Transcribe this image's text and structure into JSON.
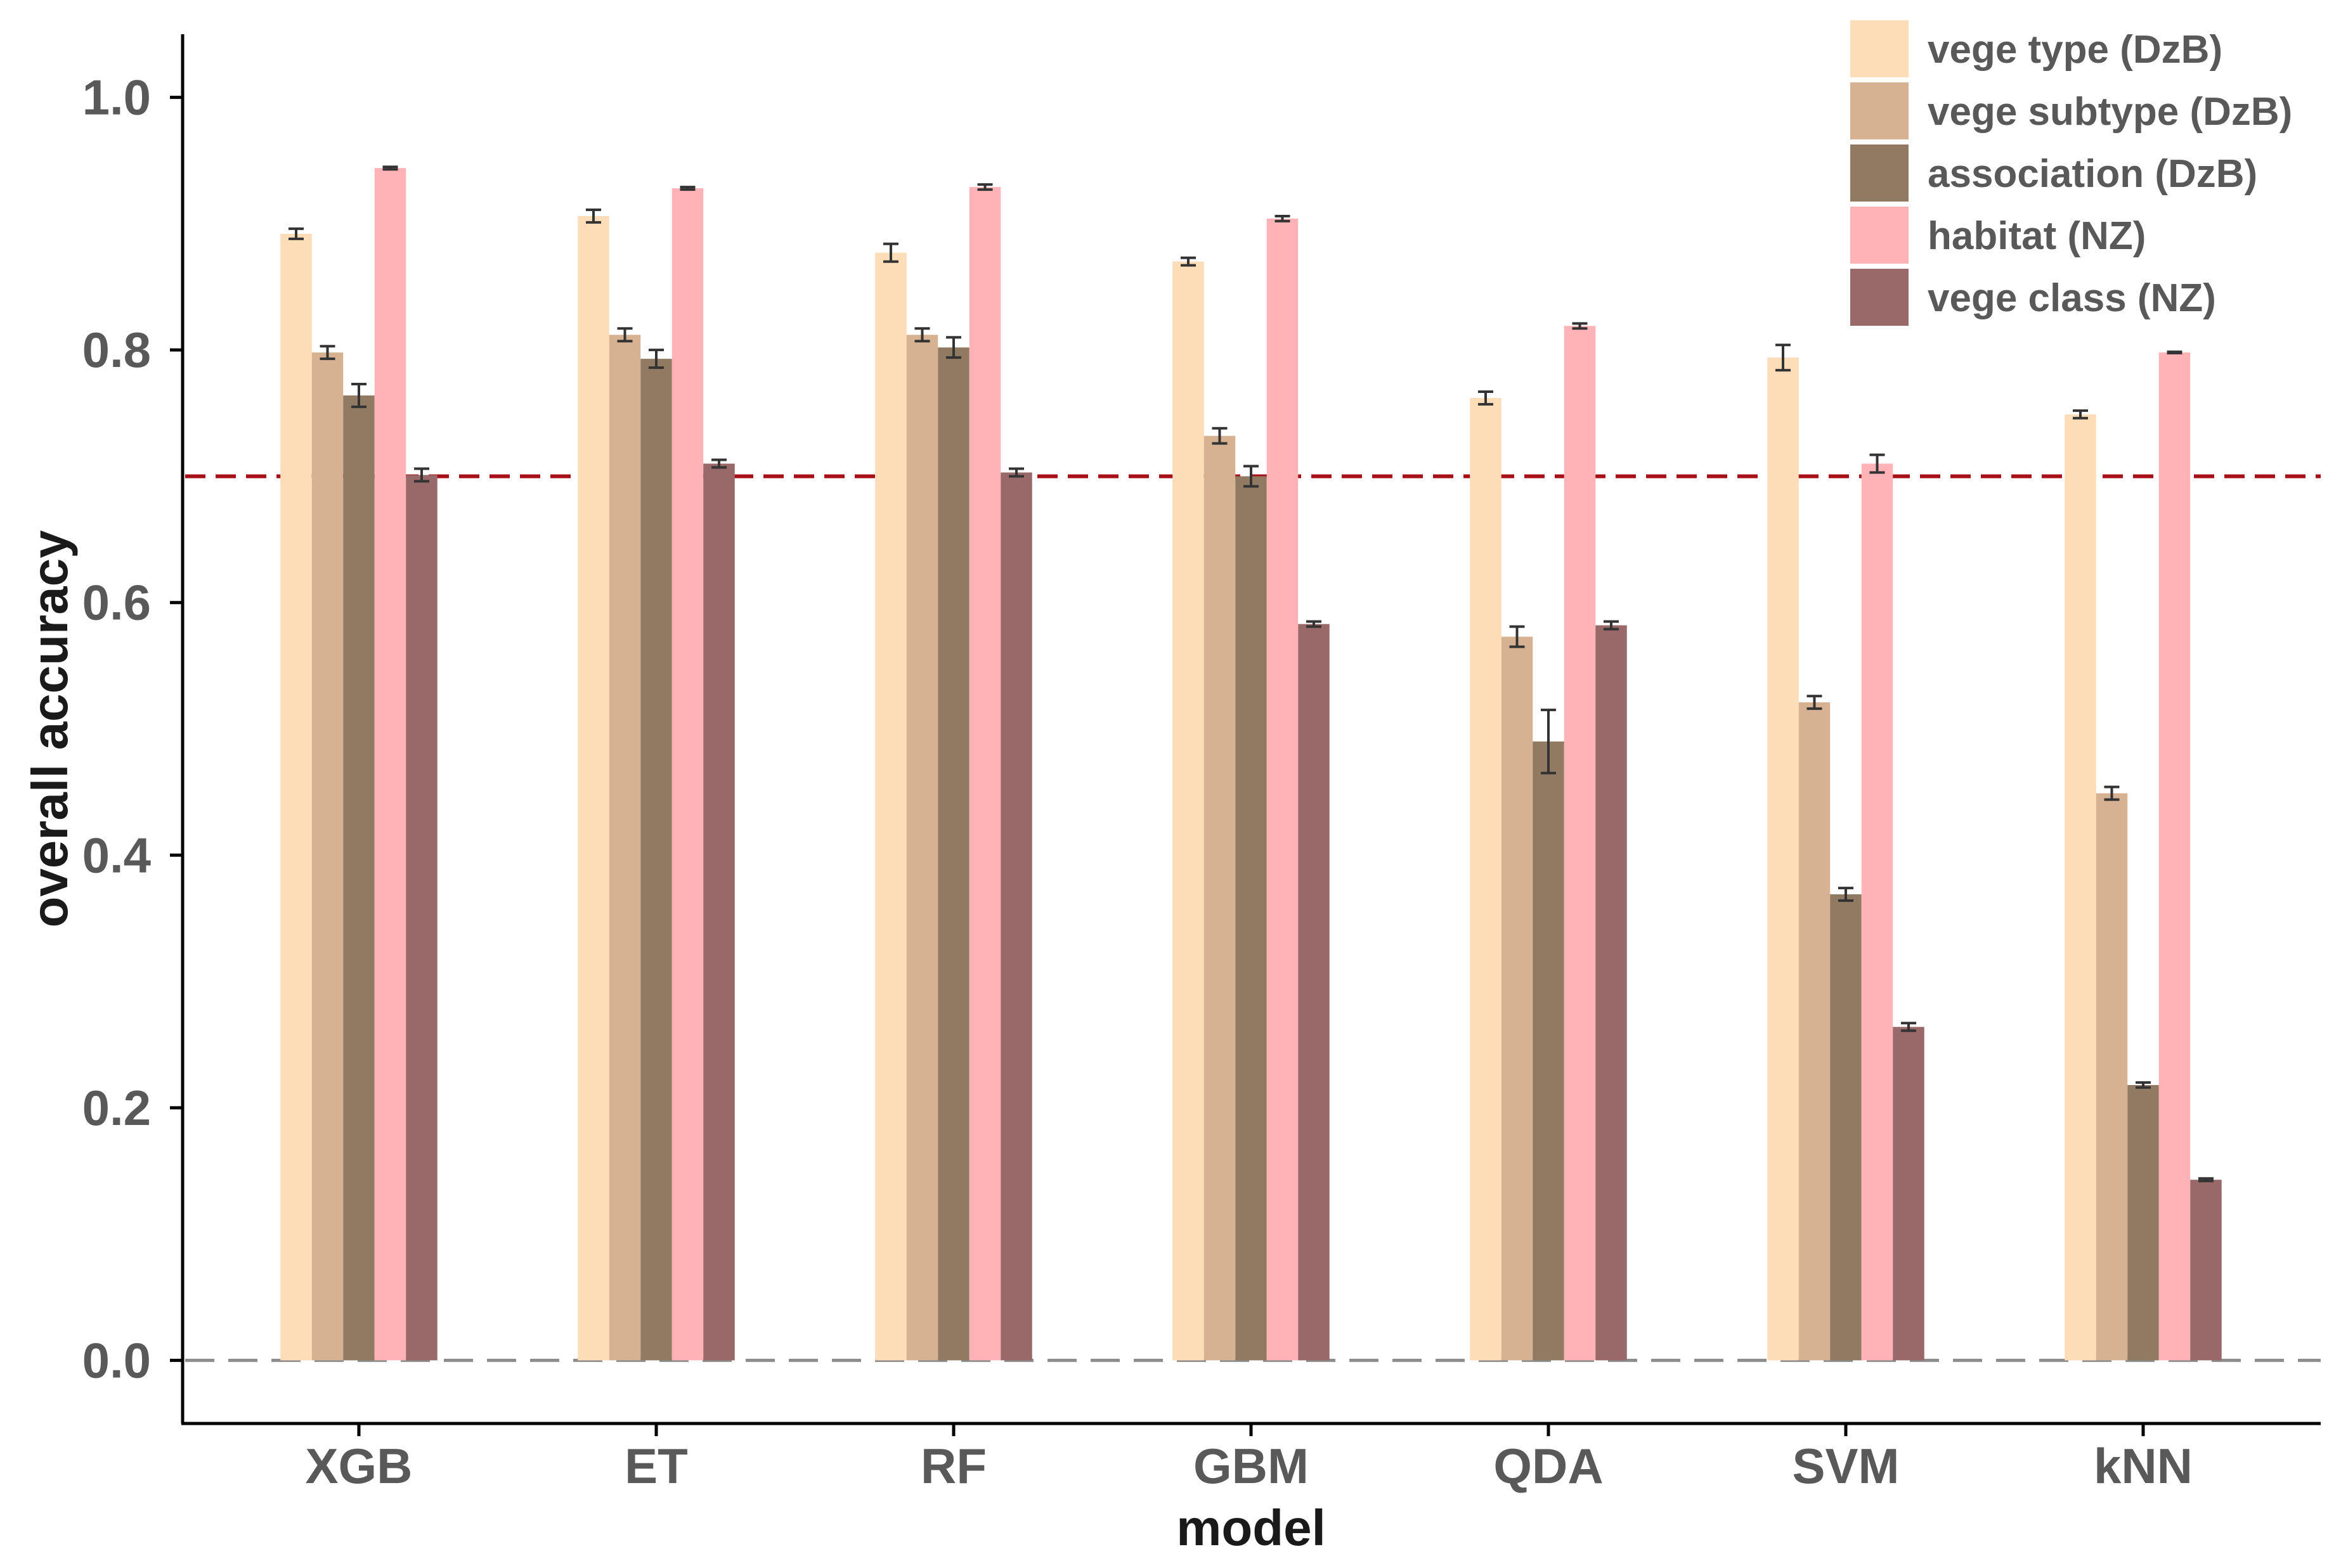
{
  "chart_data": {
    "type": "bar",
    "title": "",
    "xlabel": "model",
    "ylabel": "overall accuracy",
    "ylim": [
      -0.05,
      1.05
    ],
    "yticks": [
      "0.0",
      "0.2",
      "0.4",
      "0.6",
      "0.8",
      "1.0"
    ],
    "grid": false,
    "legend_position": "top-right",
    "categories": [
      "XGB",
      "ET",
      "RF",
      "GBM",
      "QDA",
      "SVM",
      "kNN"
    ],
    "reference_lines": [
      {
        "value": 0.7,
        "style": "dashed",
        "color": "#a50f15"
      },
      {
        "value": 0.0,
        "style": "dashed",
        "color": "#8c8c8c"
      }
    ],
    "series": [
      {
        "name": "vege type (DzB)",
        "color": "#fddcb8",
        "values": [
          0.892,
          0.906,
          0.877,
          0.87,
          0.762,
          0.794,
          0.749
        ],
        "errors": [
          0.004,
          0.005,
          0.007,
          0.003,
          0.005,
          0.01,
          0.003
        ]
      },
      {
        "name": "vege subtype (DzB)",
        "color": "#d6b192",
        "values": [
          0.798,
          0.812,
          0.812,
          0.732,
          0.573,
          0.521,
          0.449
        ],
        "errors": [
          0.005,
          0.005,
          0.005,
          0.006,
          0.008,
          0.005,
          0.005
        ]
      },
      {
        "name": "association (DzB)",
        "color": "#917a62",
        "values": [
          0.764,
          0.793,
          0.802,
          0.7,
          0.49,
          0.369,
          0.218
        ],
        "errors": [
          0.009,
          0.007,
          0.008,
          0.008,
          0.025,
          0.005,
          0.002
        ]
      },
      {
        "name": "habitat (NZ)",
        "color": "#ffb3b6",
        "values": [
          0.944,
          0.928,
          0.929,
          0.904,
          0.819,
          0.71,
          0.798
        ],
        "errors": [
          0.001,
          0.001,
          0.002,
          0.002,
          0.002,
          0.007,
          0.0005
        ]
      },
      {
        "name": "vege class (NZ)",
        "color": "#996869",
        "values": [
          0.701,
          0.71,
          0.703,
          0.583,
          0.582,
          0.264,
          0.143
        ],
        "errors": [
          0.005,
          0.003,
          0.003,
          0.002,
          0.003,
          0.003,
          0.001
        ]
      }
    ]
  }
}
